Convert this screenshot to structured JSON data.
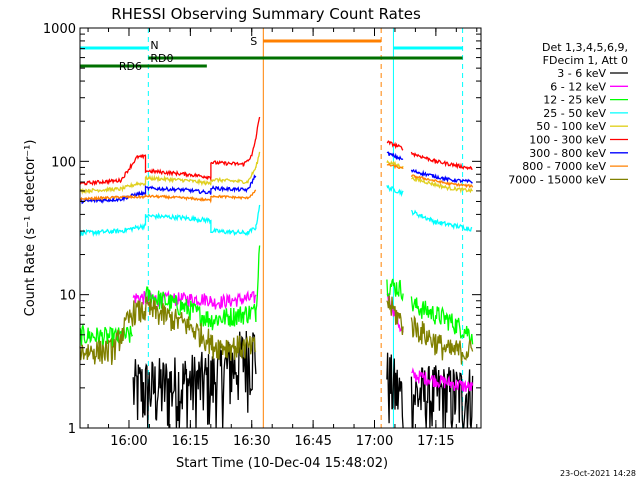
{
  "chart_data": {
    "type": "line",
    "title": "RHESSI Observing Summary Count Rates",
    "xlabel": "Start Time (10-Dec-04 15:48:02)",
    "ylabel": "Count Rate (s⁻¹ detector⁻¹)",
    "x_start": "15:48:02",
    "x_range_minutes": [
      0,
      98
    ],
    "x_ticks": [
      {
        "label": "16:00",
        "minutes": 11.97
      },
      {
        "label": "16:15",
        "minutes": 26.97
      },
      {
        "label": "16:30",
        "minutes": 41.97
      },
      {
        "label": "16:45",
        "minutes": 56.97
      },
      {
        "label": "17:00",
        "minutes": 71.97
      },
      {
        "label": "17:15",
        "minutes": 86.97
      }
    ],
    "y_scale": "log",
    "ylim": [
      1,
      1000
    ],
    "y_ticks": [
      {
        "label": "1",
        "value": 1
      },
      {
        "label": "10",
        "value": 10
      },
      {
        "label": "100",
        "value": 100
      },
      {
        "label": "1000",
        "value": 1000
      }
    ],
    "legend_position": "right",
    "legend_header": [
      "Det 1,3,4,5,6,9,",
      "FDecim 1, Att 0"
    ],
    "series": [
      {
        "name": "3 - 6 keV",
        "color": "#000000",
        "noise": 0.65,
        "min": 1.0,
        "values": [
          [
            0,
            null
          ],
          [
            13,
            null
          ],
          [
            13,
            2.0
          ],
          [
            16,
            2.0
          ],
          [
            16,
            2.0
          ],
          [
            26,
            2.2
          ],
          [
            32,
            2.3
          ],
          [
            43,
            4.0
          ],
          [
            44.5,
            null
          ],
          [
            75,
            null
          ],
          [
            75,
            2.4
          ],
          [
            79,
            1.7
          ],
          [
            79,
            null
          ],
          [
            81,
            null
          ],
          [
            81,
            1.8
          ],
          [
            90,
            1.8
          ],
          [
            96,
            1.8
          ]
        ]
      },
      {
        "name": "6 - 12 keV",
        "color": "#ff00ff",
        "noise": 0.12,
        "min": 1.0,
        "values": [
          [
            0,
            null
          ],
          [
            13,
            null
          ],
          [
            13,
            9.5
          ],
          [
            16,
            9.5
          ],
          [
            16,
            9.3
          ],
          [
            32,
            9.3
          ],
          [
            32,
            8.7
          ],
          [
            43,
            9.5
          ],
          [
            44.5,
            null
          ],
          [
            75,
            null
          ],
          [
            75,
            10.5
          ],
          [
            79,
            5.0
          ],
          [
            79,
            null
          ],
          [
            81,
            null
          ],
          [
            81,
            2.5
          ],
          [
            96,
            2.0
          ]
        ]
      },
      {
        "name": "12 - 25 keV",
        "color": "#00ff00",
        "noise": 0.18,
        "min": 1.0,
        "values": [
          [
            0,
            5.0
          ],
          [
            8,
            4.8
          ],
          [
            13,
            5.0
          ],
          [
            13,
            null
          ],
          [
            16,
            null
          ],
          [
            16,
            10.0
          ],
          [
            26,
            8.0
          ],
          [
            32,
            6.5
          ],
          [
            32,
            6.5
          ],
          [
            43,
            7.5
          ],
          [
            44,
            30.0
          ],
          [
            44.5,
            null
          ],
          [
            75,
            null
          ],
          [
            75,
            12.0
          ],
          [
            79,
            11.0
          ],
          [
            79,
            null
          ],
          [
            81,
            null
          ],
          [
            81,
            8.5
          ],
          [
            90,
            6.5
          ],
          [
            96,
            5.0
          ]
        ]
      },
      {
        "name": "25 - 50 keV",
        "color": "#00ffff",
        "noise": 0.04,
        "min": 1.0,
        "values": [
          [
            0,
            29.0
          ],
          [
            10,
            30.0
          ],
          [
            16,
            33.0
          ],
          [
            16,
            39.0
          ],
          [
            24,
            38.0
          ],
          [
            32,
            36.0
          ],
          [
            32,
            30.0
          ],
          [
            41,
            29.0
          ],
          [
            43,
            32.0
          ],
          [
            44,
            50.0
          ],
          [
            44.5,
            null
          ],
          [
            75,
            null
          ],
          [
            75,
            64.0
          ],
          [
            79,
            58.0
          ],
          [
            79,
            null
          ],
          [
            81,
            null
          ],
          [
            81,
            42.0
          ],
          [
            87,
            35.0
          ],
          [
            96,
            31.0
          ]
        ]
      },
      {
        "name": "50 - 100 keV",
        "color": "#e0d020",
        "noise": 0.03,
        "min": 1.0,
        "values": [
          [
            0,
            60.0
          ],
          [
            10,
            62.0
          ],
          [
            14,
            68.0
          ],
          [
            16,
            68.0
          ],
          [
            16,
            75.0
          ],
          [
            26,
            72.0
          ],
          [
            32,
            68.0
          ],
          [
            32,
            73.0
          ],
          [
            41,
            70.0
          ],
          [
            43,
            90.0
          ],
          [
            44,
            120.0
          ],
          [
            44.5,
            null
          ],
          [
            75,
            null
          ],
          [
            75,
            100.0
          ],
          [
            79,
            90.0
          ],
          [
            79,
            null
          ],
          [
            81,
            null
          ],
          [
            81,
            75.0
          ],
          [
            90,
            63.0
          ],
          [
            96,
            60.0
          ]
        ]
      },
      {
        "name": "100 - 300 keV",
        "color": "#ff0000",
        "noise": 0.03,
        "min": 1.0,
        "values": [
          [
            0,
            68.0
          ],
          [
            10,
            72.0
          ],
          [
            14,
            108.0
          ],
          [
            16,
            108.0
          ],
          [
            16,
            85.0
          ],
          [
            26,
            80.0
          ],
          [
            32,
            76.0
          ],
          [
            32,
            98.0
          ],
          [
            40,
            95.0
          ],
          [
            42,
            110.0
          ],
          [
            43,
            150.0
          ],
          [
            44,
            230.0
          ],
          [
            44.5,
            null
          ],
          [
            75,
            null
          ],
          [
            75,
            140.0
          ],
          [
            79,
            125.0
          ],
          [
            79,
            null
          ],
          [
            81,
            null
          ],
          [
            81,
            115.0
          ],
          [
            87,
            100.0
          ],
          [
            96,
            88.0
          ]
        ]
      },
      {
        "name": "300 - 800 keV",
        "color": "#0000ff",
        "noise": 0.03,
        "min": 1.0,
        "values": [
          [
            0,
            50.0
          ],
          [
            10,
            52.0
          ],
          [
            14,
            57.0
          ],
          [
            16,
            57.0
          ],
          [
            16,
            63.0
          ],
          [
            26,
            61.0
          ],
          [
            32,
            58.0
          ],
          [
            32,
            63.0
          ],
          [
            41,
            61.0
          ],
          [
            43,
            80.0
          ],
          [
            44.5,
            null
          ],
          [
            75,
            null
          ],
          [
            75,
            115.0
          ],
          [
            79,
            103.0
          ],
          [
            79,
            null
          ],
          [
            81,
            null
          ],
          [
            81,
            85.0
          ],
          [
            90,
            73.0
          ],
          [
            96,
            70.0
          ]
        ]
      },
      {
        "name": "800 - 7000 keV",
        "color": "#ff8000",
        "noise": 0.02,
        "min": 1.0,
        "values": [
          [
            0,
            52.0
          ],
          [
            10,
            54.0
          ],
          [
            16,
            54.0
          ],
          [
            16,
            55.0
          ],
          [
            26,
            53.0
          ],
          [
            32,
            51.0
          ],
          [
            32,
            55.0
          ],
          [
            41,
            53.0
          ],
          [
            43,
            60.0
          ],
          [
            44.5,
            null
          ],
          [
            75,
            null
          ],
          [
            75,
            95.0
          ],
          [
            79,
            88.0
          ],
          [
            79,
            null
          ],
          [
            81,
            null
          ],
          [
            81,
            78.0
          ],
          [
            90,
            68.0
          ],
          [
            96,
            65.0
          ]
        ]
      },
      {
        "name": "7000 - 15000 keV",
        "color": "#808000",
        "noise": 0.22,
        "min": 1.0,
        "values": [
          [
            0,
            3.8
          ],
          [
            8,
            3.8
          ],
          [
            13,
            7.5
          ],
          [
            16,
            7.5
          ],
          [
            16,
            8.0
          ],
          [
            26,
            6.0
          ],
          [
            32,
            4.5
          ],
          [
            32,
            4.2
          ],
          [
            43,
            4.0
          ],
          [
            44.5,
            null
          ],
          [
            75,
            null
          ],
          [
            75,
            9.0
          ],
          [
            79,
            6.0
          ],
          [
            79,
            null
          ],
          [
            81,
            null
          ],
          [
            81,
            6.0
          ],
          [
            90,
            3.8
          ],
          [
            96,
            3.8
          ]
        ]
      }
    ],
    "annotations": {
      "vertical_lines": [
        {
          "minutes": 0,
          "color": "#00ffff",
          "style": "solid"
        },
        {
          "minutes": 16.7,
          "color": "#00ffff",
          "style": "dashed"
        },
        {
          "minutes": 44.8,
          "color": "#ff8000",
          "style": "solid"
        },
        {
          "minutes": 73.6,
          "color": "#ff8000",
          "style": "dashed"
        },
        {
          "minutes": 76.6,
          "color": "#00ffff",
          "style": "solid"
        },
        {
          "minutes": 93.5,
          "color": "#00ffff",
          "style": "dashed"
        }
      ],
      "bars": [
        {
          "label": "N",
          "color": "#00ffff",
          "segments": [
            [
              0,
              16.7
            ],
            [
              76.6,
              93.5
            ]
          ]
        },
        {
          "label": "S",
          "color": "#ff8000",
          "segments": [
            [
              44.8,
              73.6
            ]
          ]
        },
        {
          "label": "RD0",
          "color": "#007000",
          "segments": [
            [
              16.7,
              76.6
            ],
            [
              76.6,
              93.5
            ]
          ]
        },
        {
          "label": "RD6",
          "color": "#007000",
          "segments": [
            [
              0,
              31
            ]
          ]
        }
      ]
    },
    "timestamp": "23-Oct-2021 14:28"
  }
}
